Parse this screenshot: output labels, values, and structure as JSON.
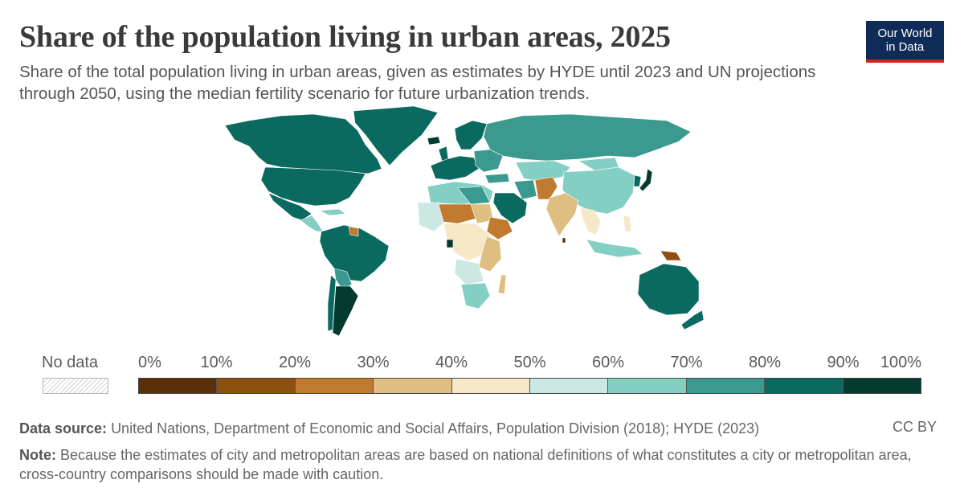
{
  "header": {
    "title": "Share of the population living in urban areas, 2025",
    "subtitle": "Share of the total population living in urban areas, given as estimates by HYDE until 2023 and UN projections through 2050, using the median fertility scenario for future urbanization trends.",
    "logo_line1": "Our World",
    "logo_line2": "in Data"
  },
  "legend": {
    "no_data_label": "No data",
    "ticks": [
      "0%",
      "10%",
      "20%",
      "30%",
      "40%",
      "50%",
      "60%",
      "70%",
      "80%",
      "90%",
      "100%"
    ],
    "colors": [
      "#5a3009",
      "#8e500f",
      "#c07b30",
      "#dfbf81",
      "#f6e8c6",
      "#cbe8e3",
      "#84cfc3",
      "#3a9a90",
      "#0b6a60",
      "#043a30"
    ],
    "no_data_pattern_color": "#d2d2d2"
  },
  "chart_data": {
    "type": "map",
    "bins": [
      0,
      10,
      20,
      30,
      40,
      50,
      60,
      70,
      80,
      90,
      100
    ],
    "unit": "%",
    "regions": [
      {
        "name": "North America",
        "bin": [
          80,
          90
        ]
      },
      {
        "name": "Greenland",
        "bin": [
          80,
          90
        ]
      },
      {
        "name": "Mexico",
        "bin": [
          80,
          90
        ]
      },
      {
        "name": "Central America",
        "bin": [
          50,
          70
        ]
      },
      {
        "name": "South America",
        "bin": [
          80,
          90
        ]
      },
      {
        "name": "Argentina",
        "bin": [
          90,
          100
        ]
      },
      {
        "name": "Europe",
        "bin": [
          70,
          90
        ]
      },
      {
        "name": "Russia",
        "bin": [
          70,
          80
        ]
      },
      {
        "name": "China",
        "bin": [
          60,
          70
        ]
      },
      {
        "name": "Japan",
        "bin": [
          90,
          100
        ]
      },
      {
        "name": "India",
        "bin": [
          30,
          40
        ]
      },
      {
        "name": "Pakistan",
        "bin": [
          30,
          40
        ]
      },
      {
        "name": "Middle East",
        "bin": [
          70,
          90
        ]
      },
      {
        "name": "North Africa",
        "bin": [
          60,
          80
        ]
      },
      {
        "name": "Sahel",
        "bin": [
          20,
          30
        ]
      },
      {
        "name": "Central & East Africa",
        "bin": [
          30,
          50
        ]
      },
      {
        "name": "Southern Africa",
        "bin": [
          60,
          70
        ]
      },
      {
        "name": "Southeast Asia",
        "bin": [
          50,
          60
        ]
      },
      {
        "name": "Australia",
        "bin": [
          80,
          90
        ]
      },
      {
        "name": "New Zealand",
        "bin": [
          80,
          90
        ]
      },
      {
        "name": "Papua New Guinea",
        "bin": [
          10,
          20
        ]
      }
    ]
  },
  "footer": {
    "source_label": "Data source:",
    "source_text": "United Nations, Department of Economic and Social Affairs, Population Division (2018); HYDE (2023)",
    "license": "CC BY",
    "note_label": "Note:",
    "note_text": "Because the estimates of city and metropolitan areas are based on national definitions of what constitutes a city or metropolitan area, cross-country comparisons should be made with caution."
  }
}
